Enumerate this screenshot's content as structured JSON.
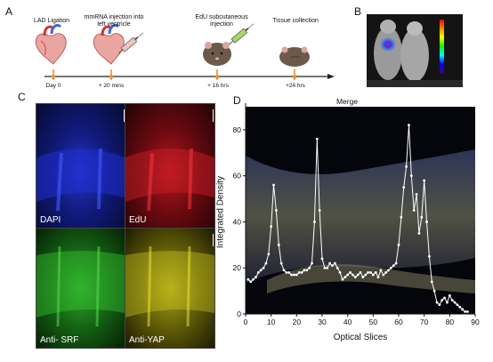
{
  "panels": {
    "a": {
      "letter": "A"
    },
    "b": {
      "letter": "B"
    },
    "c": {
      "letter": "C"
    },
    "d": {
      "letter": "D"
    }
  },
  "timeline": {
    "steps": [
      {
        "label": "LAD Ligation",
        "time": "Day 0"
      },
      {
        "label": "mmRNA injection into left ventricle",
        "time": "+ 20 mins"
      },
      {
        "label": "EdU subcutaneous injection",
        "time": "+ 16 hrs"
      },
      {
        "label": "Tissue collection",
        "time": "+24 hrs"
      }
    ]
  },
  "micrographs": [
    {
      "label": "DAPI",
      "color": "#1a2ad0"
    },
    {
      "label": "EdU",
      "color": "#c0141a"
    },
    {
      "label": "Anti- SRF",
      "color": "#22a21a"
    },
    {
      "label": "Anti-YAP",
      "color": "#c8c01a"
    }
  ],
  "chart_data": {
    "type": "line",
    "title": "Merge",
    "xlabel": "Optical Slices",
    "ylabel": "Integrated Density",
    "xlim": [
      0,
      90
    ],
    "ylim": [
      0,
      90
    ],
    "x_ticks": [
      0,
      10,
      20,
      30,
      40,
      50,
      60,
      70,
      80,
      90
    ],
    "y_ticks": [
      0,
      20,
      40,
      60,
      80
    ],
    "series": [
      {
        "color": "#ffffff",
        "x": [
          1,
          2,
          3,
          4,
          5,
          6,
          7,
          8,
          9,
          10,
          11,
          12,
          13,
          14,
          15,
          16,
          17,
          18,
          19,
          20,
          21,
          22,
          23,
          24,
          25,
          26,
          27,
          28,
          29,
          30,
          31,
          32,
          33,
          34,
          35,
          36,
          37,
          38,
          39,
          40,
          41,
          42,
          43,
          44,
          45,
          46,
          47,
          48,
          49,
          50,
          51,
          52,
          53,
          54,
          55,
          56,
          57,
          58,
          59,
          60,
          61,
          62,
          63,
          64,
          65,
          66,
          67,
          68,
          69,
          70,
          71,
          72,
          73,
          74,
          75,
          76,
          77,
          78,
          79,
          80,
          81,
          82,
          83,
          84,
          85,
          86,
          87
        ],
        "y": [
          15,
          14,
          15,
          16,
          18,
          19,
          20,
          22,
          26,
          38,
          56,
          45,
          30,
          22,
          19,
          18,
          18,
          17,
          17,
          17,
          18,
          18,
          19,
          19,
          20,
          22,
          40,
          76,
          45,
          24,
          20,
          20,
          22,
          21,
          22,
          20,
          18,
          15,
          16,
          17,
          18,
          17,
          16,
          17,
          18,
          16,
          17,
          18,
          18,
          17,
          18,
          16,
          19,
          17,
          18,
          19,
          20,
          21,
          22,
          30,
          42,
          55,
          64,
          82,
          60,
          45,
          52,
          35,
          42,
          58,
          40,
          25,
          14,
          10,
          5,
          4,
          6,
          7,
          5,
          8,
          6,
          5,
          4,
          3,
          2,
          1,
          1
        ]
      }
    ]
  }
}
